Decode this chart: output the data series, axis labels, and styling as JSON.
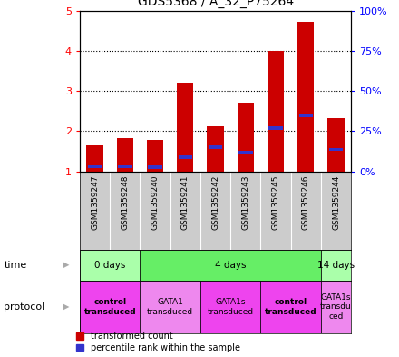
{
  "title": "GDS5368 / A_32_P75264",
  "samples": [
    "GSM1359247",
    "GSM1359248",
    "GSM1359240",
    "GSM1359241",
    "GSM1359242",
    "GSM1359243",
    "GSM1359245",
    "GSM1359246",
    "GSM1359244"
  ],
  "transformed_counts": [
    1.65,
    1.82,
    1.78,
    3.2,
    2.12,
    2.72,
    4.0,
    4.72,
    2.32
  ],
  "percentile_ranks": [
    1.12,
    1.12,
    1.1,
    1.35,
    1.6,
    1.48,
    2.08,
    2.38,
    1.55
  ],
  "ylim": [
    1,
    5
  ],
  "yticks_left": [
    1,
    2,
    3,
    4,
    5
  ],
  "yticks_right_vals": [
    0,
    25,
    50,
    75,
    100
  ],
  "bar_color": "#cc0000",
  "percentile_color": "#3333cc",
  "bg_color": "#ffffff",
  "time_groups": [
    {
      "label": "0 days",
      "start": 0,
      "end": 2,
      "color": "#aaffaa"
    },
    {
      "label": "4 days",
      "start": 2,
      "end": 8,
      "color": "#66ee66"
    },
    {
      "label": "14 days",
      "start": 8,
      "end": 9,
      "color": "#aaffaa"
    }
  ],
  "protocol_groups": [
    {
      "label": "control\ntransduced",
      "start": 0,
      "end": 2,
      "color": "#ee44ee",
      "bold": true
    },
    {
      "label": "GATA1\ntransduced",
      "start": 2,
      "end": 4,
      "color": "#ee88ee",
      "bold": false
    },
    {
      "label": "GATA1s\ntransduced",
      "start": 4,
      "end": 6,
      "color": "#ee44ee",
      "bold": false
    },
    {
      "label": "control\ntransduced",
      "start": 6,
      "end": 8,
      "color": "#ee44ee",
      "bold": true
    },
    {
      "label": "GATA1s\ntransdu\nced",
      "start": 8,
      "end": 9,
      "color": "#ee88ee",
      "bold": false
    }
  ],
  "sample_bg_color": "#cccccc",
  "legend_red_label": "transformed count",
  "legend_blue_label": "percentile rank within the sample",
  "left_labels": [
    "time",
    "protocol"
  ],
  "title_fontsize": 10
}
